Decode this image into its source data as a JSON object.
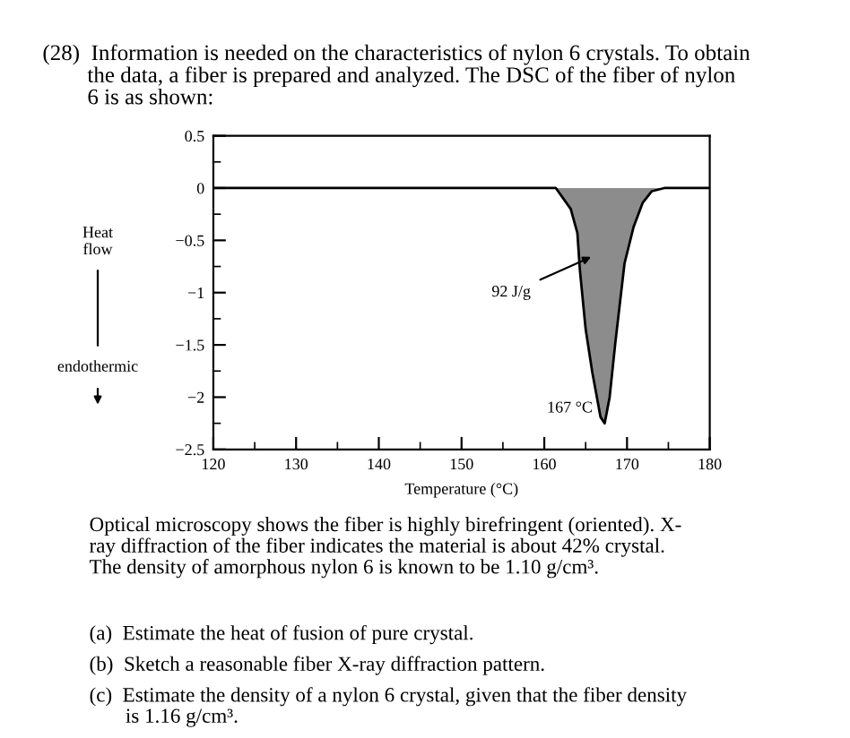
{
  "chart_data": {
    "type": "area",
    "title": "(28)  Information is needed on the characteristics of nylon 6 crystals. To obtain\n        the data, a fiber is prepared and analyzed. The DSC of the fiber of nylon\n        6 is as shown:",
    "xlabel": "Temperature (°C)",
    "ylabel": "Heat\nflow",
    "x": [
      120,
      158.5,
      161.4,
      163.2,
      164.0,
      164.3,
      165.0,
      165.8,
      166.8,
      167.3,
      167.9,
      168.6,
      169.7,
      170.8,
      171.9,
      173.0,
      174.5,
      180
    ],
    "series": [
      {
        "color": "#8c8c8c",
        "values": [
          0,
          0,
          0,
          -0.2,
          -0.43,
          -0.78,
          -1.35,
          -1.76,
          -2.19,
          -2.25,
          -2.0,
          -1.47,
          -0.72,
          -0.37,
          -0.14,
          -0.03,
          0,
          0
        ]
      }
    ],
    "xlim": [
      120,
      180
    ],
    "ylim": [
      -2.5,
      0.5
    ],
    "xticks": [
      120,
      130,
      140,
      150,
      160,
      170,
      180
    ],
    "yticks": [
      0.5,
      0,
      {
        "value": -0.5,
        "label": "−0.5"
      },
      {
        "value": -1,
        "label": "−1"
      },
      {
        "value": -1.5,
        "label": "−1.5"
      },
      {
        "value": -2,
        "label": "−2"
      },
      {
        "value": -2.5,
        "label": "−2.5"
      }
    ],
    "grid": false,
    "legend": false,
    "annotations": [
      "92 J/g",
      {
        "text": "167 °C",
        "x": 167.3,
        "y": -2.25
      },
      "endothermic",
      "Optical microscopy shows the fiber is highly birefringent (oriented). X-\nray diffraction of the fiber indicates the material is about 42% crystal.\nThe density of amorphous nylon 6 is known to be 1.10 g/cm³.",
      "(a)  Estimate the heat of fusion of pure crystal.",
      "(b)  Sketch a reasonable fiber X-ray diffraction pattern.",
      "(c)  Estimate the density of a nylon 6 crystal, given that the fiber density\n       is 1.16 g/cm³."
    ]
  }
}
